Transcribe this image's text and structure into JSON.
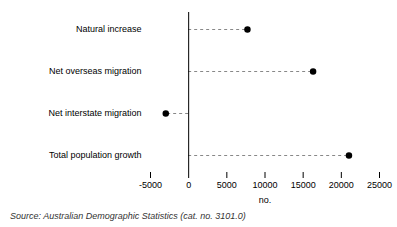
{
  "chart_data": {
    "type": "dot",
    "orientation": "horizontal",
    "caption": "Source: Australian Demographic Statistics (cat. no. 3101.0)",
    "xlabel": "no.",
    "categories": [
      "Natural increase",
      "Net overseas migration",
      "Net interstate migration",
      "Total population growth"
    ],
    "values": [
      7700,
      16300,
      -3000,
      21000
    ],
    "color": "#000000",
    "marker": "circle",
    "line_style": "dashed",
    "xlim": [
      -5000,
      25000
    ],
    "xticks": [
      -5000,
      0,
      5000,
      10000,
      15000,
      20000,
      25000
    ],
    "grid": false
  }
}
